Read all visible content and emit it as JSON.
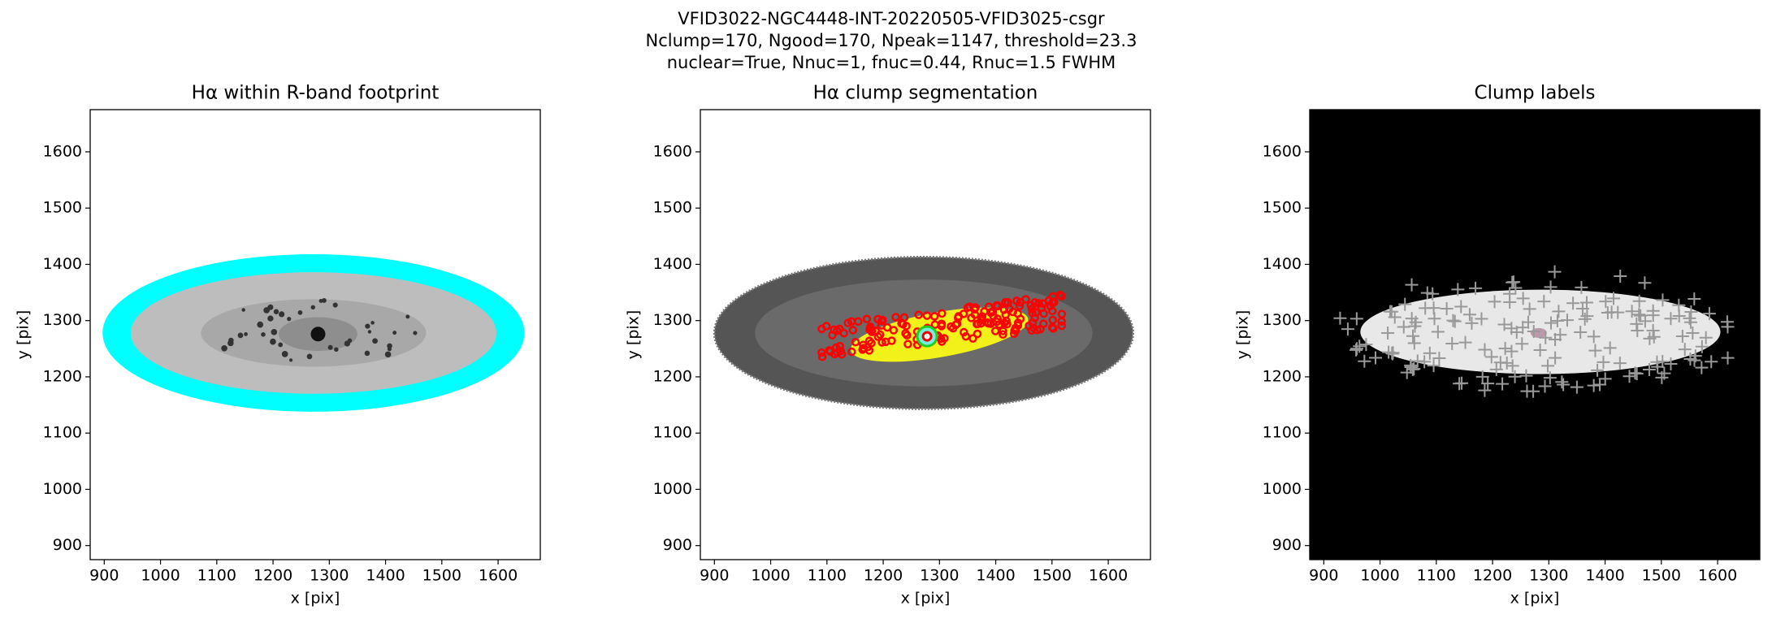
{
  "figure_title": [
    "VFID3022-NGC4448-INT-20220505-VFID3025-csgr",
    "Nclump=170, Ngood=170, Npeak=1147, threshold=23.3",
    "nuclear=True, Nnuc=1, fnuc=0.44, Rnuc=1.5 FWHM"
  ],
  "chart_data": [
    {
      "type": "image",
      "title": "Hα within R-band footprint",
      "xlabel": "x [pix]",
      "ylabel": "y [pix]",
      "xlim": [
        875,
        1675
      ],
      "ylim": [
        875,
        1675
      ],
      "xticks": [
        900,
        1000,
        1100,
        1200,
        1300,
        1400,
        1500,
        1600
      ],
      "yticks": [
        900,
        1000,
        1100,
        1200,
        1300,
        1400,
        1500,
        1600
      ]
    },
    {
      "type": "image",
      "title": "Hα clump segmentation",
      "xlabel": "x [pix]",
      "ylabel": "y [pix]",
      "xlim": [
        875,
        1675
      ],
      "ylim": [
        875,
        1675
      ],
      "xticks": [
        900,
        1000,
        1100,
        1200,
        1300,
        1400,
        1500,
        1600
      ],
      "yticks": [
        900,
        1000,
        1100,
        1200,
        1300,
        1400,
        1500,
        1600
      ]
    },
    {
      "type": "image",
      "title": "Clump labels",
      "xlabel": "x [pix]",
      "ylabel": "y [pix]",
      "xlim": [
        875,
        1675
      ],
      "ylim": [
        875,
        1675
      ],
      "xticks": [
        900,
        1000,
        1100,
        1200,
        1300,
        1400,
        1500,
        1600
      ],
      "yticks": [
        900,
        1000,
        1100,
        1200,
        1300,
        1400,
        1500,
        1600
      ]
    }
  ]
}
